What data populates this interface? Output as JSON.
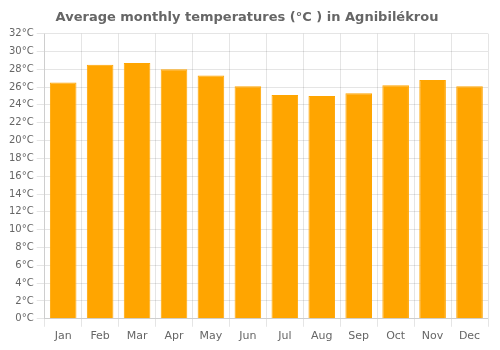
{
  "chart_data": {
    "type": "bar",
    "title": "Average monthly temperatures (°C ) in Agnibilékrou",
    "categories": [
      "Jan",
      "Feb",
      "Mar",
      "Apr",
      "May",
      "Jun",
      "Jul",
      "Aug",
      "Sep",
      "Oct",
      "Nov",
      "Dec"
    ],
    "values": [
      26.5,
      28.5,
      28.7,
      28.0,
      27.3,
      26.1,
      25.1,
      25.0,
      25.3,
      26.2,
      26.8,
      26.1
    ],
    "color": "#FFA500",
    "ylim": [
      0,
      32
    ],
    "yticks": [
      {
        "value": 0,
        "label": "0°C"
      },
      {
        "value": 2,
        "label": "2°C"
      },
      {
        "value": 4,
        "label": "4°C"
      },
      {
        "value": 6,
        "label": "6°C"
      },
      {
        "value": 8,
        "label": "8°C"
      },
      {
        "value": 10,
        "label": "10°C"
      },
      {
        "value": 12,
        "label": "12°C"
      },
      {
        "value": 14,
        "label": "14°C"
      },
      {
        "value": 16,
        "label": "16°C"
      },
      {
        "value": 18,
        "label": "18°C"
      },
      {
        "value": 20,
        "label": "20°C"
      },
      {
        "value": 22,
        "label": "22°C"
      },
      {
        "value": 24,
        "label": "24°C"
      },
      {
        "value": 26,
        "label": "26°C"
      },
      {
        "value": 28,
        "label": "28°C"
      },
      {
        "value": 30,
        "label": "30°C"
      },
      {
        "value": 32,
        "label": "32°C"
      }
    ],
    "grid": true
  }
}
